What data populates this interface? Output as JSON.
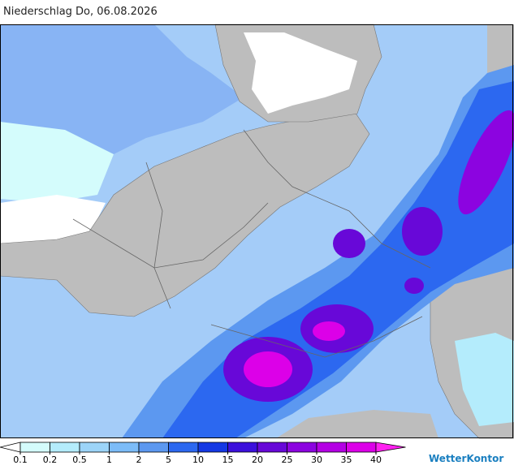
{
  "header": {
    "title": "Niederschlag Do, 06.08.2026"
  },
  "legend": {
    "ticks": [
      0.1,
      0.2,
      0.5,
      1,
      2,
      5,
      10,
      15,
      20,
      25,
      30,
      35,
      40
    ],
    "colors": [
      "#ffffff",
      "#d4fcfc",
      "#b4ecfc",
      "#9cd4f8",
      "#7cbcf8",
      "#5c98f0",
      "#2c68f0",
      "#1438e4",
      "#3c10dc",
      "#6808d8",
      "#8c04e0",
      "#b400e4",
      "#dc00e8",
      "#ff20f0"
    ]
  },
  "brand": {
    "name": "WetterKontor"
  }
}
